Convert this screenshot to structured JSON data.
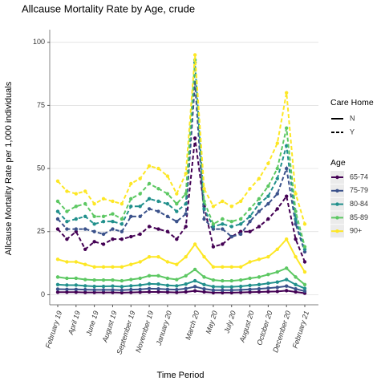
{
  "chart_data": {
    "type": "line",
    "title": "Allcause Mortality Rate by Age, crude",
    "x_label": "Time Period",
    "y_label": "Allcause Mortality Rate per 1,000 individuals",
    "categories": [
      "February 19",
      null,
      "April 19",
      null,
      "June 19",
      null,
      "August 19",
      null,
      "September 19",
      null,
      "November 19",
      null,
      "January 20",
      null,
      null,
      "March 20",
      null,
      "May 20",
      null,
      "July 20",
      null,
      "August 20",
      null,
      "October 20",
      null,
      "December 20",
      null,
      "February 21"
    ],
    "ylim": [
      -4,
      105
    ],
    "yticks": [
      0,
      25,
      50,
      75,
      100
    ],
    "grid": true,
    "legend": {
      "care_home": {
        "title": "Care Home",
        "items": [
          "N",
          "Y"
        ],
        "dashed": [
          false,
          true
        ]
      },
      "age": {
        "title": "Age",
        "items": [
          "65-74",
          "75-79",
          "80-84",
          "85-89",
          "90+"
        ],
        "colors": [
          "#440154",
          "#3b528b",
          "#21908c",
          "#5dc863",
          "#fde725"
        ]
      }
    },
    "series": [
      {
        "name": "65-74",
        "care_home": "N",
        "color": "#440154",
        "values": [
          1,
          1,
          1,
          0.9,
          0.9,
          0.9,
          0.9,
          0.8,
          0.9,
          1,
          1.1,
          1.1,
          1,
          0.9,
          1.1,
          1.5,
          1.1,
          0.8,
          0.8,
          0.8,
          0.9,
          1,
          1.1,
          1.2,
          1.3,
          1.6,
          1.1,
          0.6
        ]
      },
      {
        "name": "75-79",
        "care_home": "N",
        "color": "#3b528b",
        "values": [
          2.2,
          2.1,
          2.1,
          2,
          1.9,
          1.9,
          1.9,
          1.8,
          2,
          2.1,
          2.4,
          2.3,
          2.1,
          2,
          2.4,
          3.2,
          2.3,
          1.8,
          1.8,
          1.8,
          1.9,
          2.1,
          2.3,
          2.6,
          2.9,
          3.4,
          2.3,
          1.4
        ]
      },
      {
        "name": "80-84",
        "care_home": "N",
        "color": "#21908c",
        "values": [
          4,
          3.8,
          3.8,
          3.5,
          3.3,
          3.3,
          3.4,
          3.2,
          3.5,
          3.8,
          4.3,
          4.2,
          3.7,
          3.5,
          4.2,
          5.5,
          4,
          3.2,
          3.1,
          3.1,
          3.3,
          3.7,
          4,
          4.5,
          5,
          6,
          4,
          2.5
        ]
      },
      {
        "name": "85-89",
        "care_home": "N",
        "color": "#5dc863",
        "values": [
          7,
          6.5,
          6.5,
          6,
          5.8,
          5.8,
          5.8,
          5.5,
          6,
          6.5,
          7.5,
          7.5,
          6.5,
          6,
          7.5,
          10,
          7,
          5.8,
          5.5,
          5.5,
          5.8,
          6.5,
          7,
          8,
          9,
          10.5,
          7,
          4
        ]
      },
      {
        "name": "90+",
        "care_home": "N",
        "color": "#fde725",
        "values": [
          14,
          13,
          13,
          12,
          11,
          11,
          11,
          11,
          12,
          13,
          15,
          15,
          13,
          12,
          15,
          20,
          15,
          11,
          11,
          11,
          11,
          13,
          14,
          15,
          18,
          22,
          15,
          9
        ]
      },
      {
        "name": "65-74",
        "care_home": "Y",
        "color": "#440154",
        "values": [
          26,
          22,
          25,
          18,
          21,
          20,
          22,
          22,
          23,
          24,
          27,
          26,
          25,
          22,
          27,
          62,
          35,
          19,
          20,
          23,
          25,
          25,
          27,
          30,
          34,
          39,
          22,
          13
        ]
      },
      {
        "name": "75-79",
        "care_home": "Y",
        "color": "#3b528b",
        "values": [
          30,
          26,
          26,
          26,
          25,
          24,
          26,
          25,
          31,
          31,
          34,
          33,
          31,
          29,
          32,
          84,
          30,
          26,
          26,
          23,
          24,
          29,
          33,
          36,
          40,
          50,
          28,
          17
        ]
      },
      {
        "name": "80-84",
        "care_home": "Y",
        "color": "#21908c",
        "values": [
          33,
          29,
          30,
          31,
          28,
          29,
          29,
          28,
          35,
          35,
          38,
          37,
          36,
          33,
          36,
          92,
          34,
          27,
          28,
          27,
          28,
          31,
          36,
          39,
          46,
          59,
          30,
          18
        ]
      },
      {
        "name": "85-89",
        "care_home": "Y",
        "color": "#5dc863",
        "values": [
          37,
          33,
          35,
          36,
          31,
          31,
          32,
          30,
          38,
          40,
          44,
          42,
          40,
          36,
          40,
          93,
          37,
          28,
          30,
          29,
          30,
          34,
          38,
          43,
          50,
          66,
          33,
          19
        ]
      },
      {
        "name": "90+",
        "care_home": "Y",
        "color": "#fde725",
        "values": [
          45,
          41,
          40,
          41,
          36,
          38,
          37,
          36,
          44,
          46,
          51,
          50,
          47,
          40,
          48,
          95,
          42,
          35,
          37,
          35,
          37,
          42,
          46,
          52,
          60,
          80,
          40,
          28
        ]
      }
    ]
  }
}
